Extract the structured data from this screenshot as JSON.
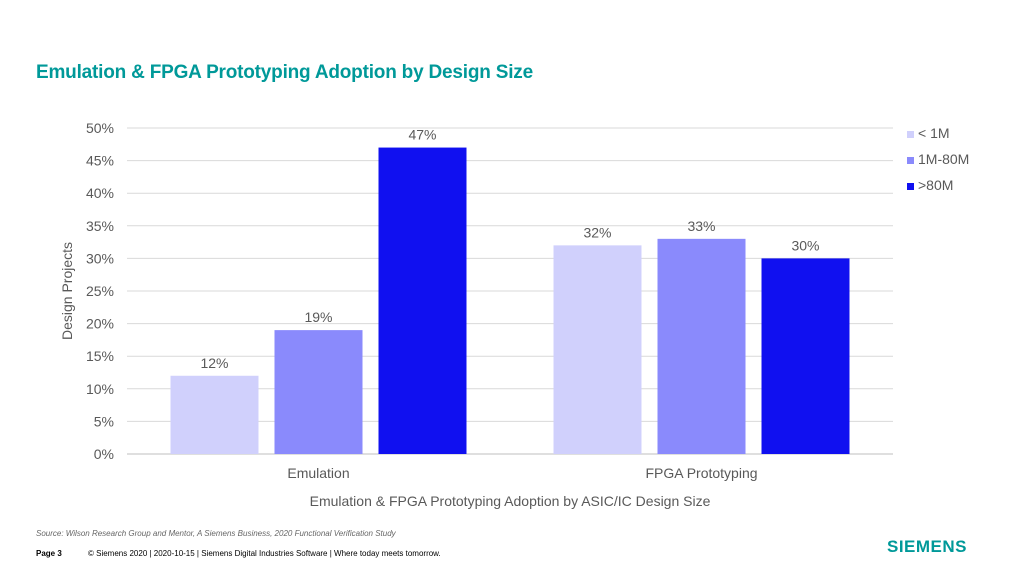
{
  "slide": {
    "title": "Emulation & FPGA Prototyping Adoption by Design Size",
    "source": "Source:  Wilson Research Group and Mentor,  A Siemens Business, 2020 Functional Verification Study",
    "page_label": "Page 3",
    "copyright": "© Siemens 2020 | 2020-10-15 | Siemens Digital Industries Software | Where today meets tomorrow.",
    "logo_text": "SIEMENS"
  },
  "colors": {
    "accent": "#009999",
    "series": [
      "#d0d0fc",
      "#8a8afc",
      "#1010f0"
    ]
  },
  "chart_data": {
    "type": "bar",
    "categories": [
      "Emulation",
      "FPGA Prototyping"
    ],
    "series": [
      {
        "name": "< 1M",
        "values": [
          12,
          32
        ],
        "labels": [
          "12%",
          "32%"
        ]
      },
      {
        "name": "1M-80M",
        "values": [
          19,
          33
        ],
        "labels": [
          "19%",
          "33%"
        ]
      },
      {
        "name": ">80M",
        "values": [
          47,
          30
        ],
        "labels": [
          "47%",
          "30%"
        ]
      }
    ],
    "ylim": [
      0,
      50
    ],
    "yticks": [
      "0%",
      "5%",
      "10%",
      "15%",
      "20%",
      "25%",
      "30%",
      "35%",
      "40%",
      "45%",
      "50%"
    ],
    "ylabel": "Design Projects",
    "xlabel": "Emulation  & FPGA Prototyping Adoption  by ASIC/IC Design Size",
    "grid": true,
    "legend": "top-right"
  }
}
